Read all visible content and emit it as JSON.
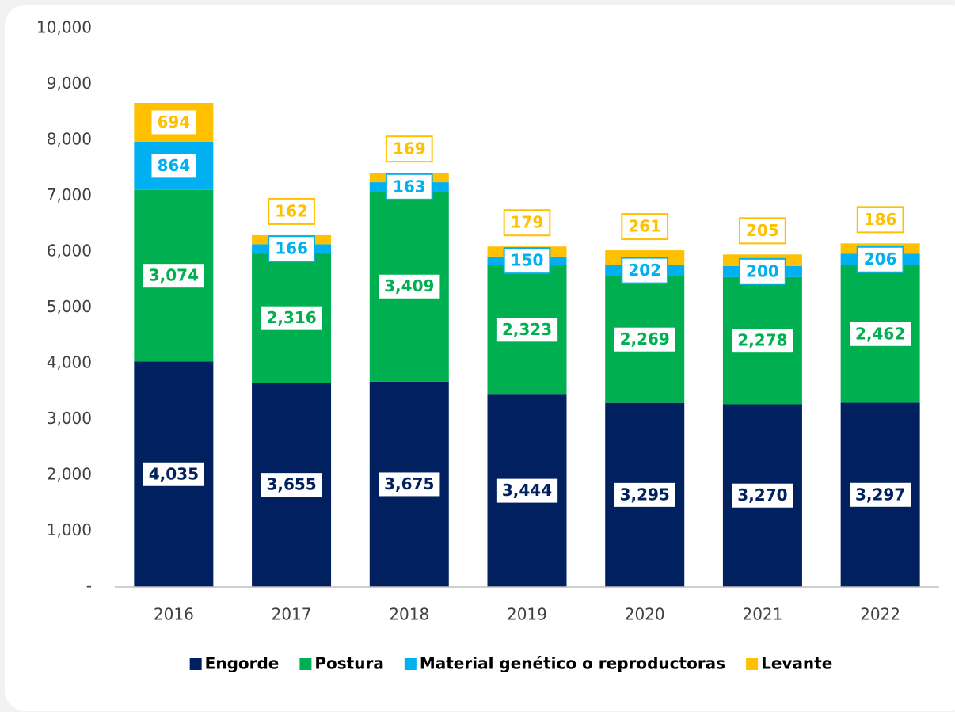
{
  "chart_data": {
    "type": "stacked_bar",
    "categories": [
      "2016",
      "2017",
      "2018",
      "2019",
      "2020",
      "2021",
      "2022"
    ],
    "series": [
      {
        "name": "Engorde",
        "color": "#002060",
        "values": [
          4035,
          3655,
          3675,
          3444,
          3295,
          3270,
          3297
        ],
        "value_labels": [
          "4,035",
          "3,655",
          "3,675",
          "3,444",
          "3,295",
          "3,270",
          "3,297"
        ]
      },
      {
        "name": "Postura",
        "color": "#00b050",
        "values": [
          3074,
          2316,
          3409,
          2323,
          2269,
          2278,
          2462
        ],
        "value_labels": [
          "3,074",
          "2,316",
          "3,409",
          "2,323",
          "2,269",
          "2,278",
          "2,462"
        ]
      },
      {
        "name": "Material genético o reproductoras",
        "color": "#00b0f0",
        "values": [
          864,
          166,
          163,
          150,
          202,
          200,
          206
        ]
      },
      {
        "name": "Levante",
        "color": "#ffc000",
        "values": [
          694,
          162,
          169,
          179,
          261,
          205,
          186
        ]
      }
    ],
    "ylim": [
      0,
      10000
    ],
    "yticks": [
      {
        "value": 0,
        "label": "-"
      },
      {
        "value": 1000,
        "label": "1,000"
      },
      {
        "value": 2000,
        "label": "2,000"
      },
      {
        "value": 3000,
        "label": "3,000"
      },
      {
        "value": 4000,
        "label": "4,000"
      },
      {
        "value": 5000,
        "label": "5,000"
      },
      {
        "value": 6000,
        "label": "6,000"
      },
      {
        "value": 7000,
        "label": "7,000"
      },
      {
        "value": 8000,
        "label": "8,000"
      },
      {
        "value": 9000,
        "label": "9,000"
      },
      {
        "value": 10000,
        "label": "10,000"
      }
    ],
    "grid": false,
    "legend": "bottom"
  }
}
